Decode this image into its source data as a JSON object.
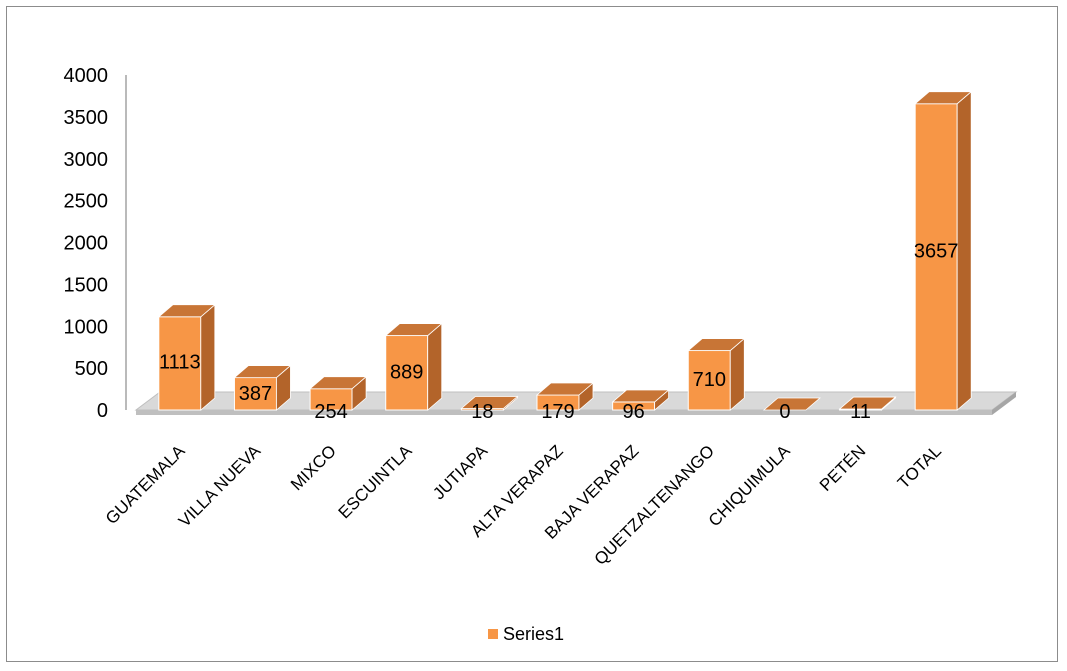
{
  "chart_data": {
    "type": "bar",
    "title": "",
    "xlabel": "",
    "ylabel": "",
    "categories": [
      "GUATEMALA",
      "VILLA NUEVA",
      "MIXCO",
      "ESCUINTLA",
      "JUTIAPA",
      "ALTA VERAPAZ",
      "BAJA VERAPAZ",
      "QUETZALTENANGO",
      "CHIQUIMULA",
      "PETÉN",
      "TOTAL"
    ],
    "series": [
      {
        "name": "Series1",
        "values": [
          1113,
          387,
          254,
          889,
          18,
          179,
          96,
          710,
          0,
          11,
          3657
        ]
      }
    ],
    "ylim": [
      0,
      4000
    ],
    "yticks": [
      0,
      500,
      1000,
      1500,
      2000,
      2500,
      3000,
      3500,
      4000
    ],
    "grid": false,
    "legend": "bottom",
    "colors": {
      "front": "#F79646",
      "side": "#B3642A",
      "top": "#C87536",
      "floor": "#D9D9D9",
      "floorEdge": "#BFBFBF"
    }
  }
}
